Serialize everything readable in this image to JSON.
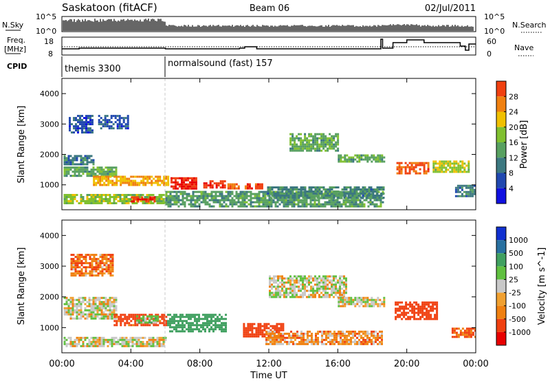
{
  "header": {
    "station": "Saskatoon (fitACF)",
    "beam": "Beam 06",
    "date": "02/Jul/2011"
  },
  "noise_panel": {
    "left_label": "N.Sky",
    "right_label": "N.Search",
    "left_ticks": [
      "10^5",
      "10^0"
    ],
    "right_ticks": [
      "10^5",
      "10^0"
    ]
  },
  "freq_panel": {
    "left_label_1": "Freq.",
    "left_label_2": "[MHz]",
    "right_label": "Nave",
    "left_ticks": [
      "18",
      "8"
    ],
    "right_ticks": [
      "60",
      "0"
    ]
  },
  "cpid": {
    "label": "CPID",
    "programs": [
      {
        "name": "themis 3300",
        "start_hour": 0
      },
      {
        "name": "normalsound (fast) 157",
        "start_hour": 6
      }
    ]
  },
  "x_axis": {
    "label": "Time UT",
    "ticks": [
      "00:00",
      "04:00",
      "08:00",
      "12:00",
      "16:00",
      "20:00",
      "00:00"
    ]
  },
  "colors": {
    "power_scale": [
      "#1010e0",
      "#2048b0",
      "#3c7880",
      "#58a060",
      "#80c030",
      "#f0c000",
      "#f08010",
      "#f04010",
      "#e80000"
    ],
    "velocity_scale": [
      "#e80000",
      "#f04010",
      "#f08010",
      "#f0a030",
      "#c8c8c8",
      "#60c040",
      "#40a060",
      "#2870a0",
      "#1030d0"
    ]
  },
  "chart_data": [
    {
      "type": "heatmap",
      "name": "power",
      "ylabel": "Slant Range [km]",
      "xlabel": "Time UT",
      "xlim_hours": [
        0,
        24
      ],
      "ylim": [
        180,
        4500
      ],
      "yticks": [
        "1000",
        "2000",
        "3000",
        "4000"
      ],
      "colorbar": {
        "label": "Power [dB]",
        "ticks": [
          "4",
          "8",
          "12",
          "16",
          "20",
          "24",
          "28"
        ],
        "range": [
          0,
          32
        ]
      },
      "bands": [
        {
          "t0": 0.1,
          "t1": 6.0,
          "r0": 380,
          "r1": 700,
          "value": 16
        },
        {
          "t0": 0.1,
          "t1": 3.2,
          "r0": 1300,
          "r1": 1600,
          "value": 13
        },
        {
          "t0": 0.1,
          "t1": 1.8,
          "r0": 1650,
          "r1": 1980,
          "value": 9
        },
        {
          "t0": 0.4,
          "t1": 1.8,
          "r0": 2750,
          "r1": 3300,
          "value": 6
        },
        {
          "t0": 2.1,
          "t1": 3.8,
          "r0": 2850,
          "r1": 3300,
          "value": 6
        },
        {
          "t0": 1.8,
          "t1": 6.2,
          "r0": 1000,
          "r1": 1300,
          "value": 21
        },
        {
          "t0": 4.0,
          "t1": 5.4,
          "r0": 450,
          "r1": 620,
          "value": 28
        },
        {
          "t0": 6.3,
          "t1": 7.8,
          "r0": 850,
          "r1": 1250,
          "value": 29
        },
        {
          "t0": 8.2,
          "t1": 9.5,
          "r0": 900,
          "r1": 1150,
          "value": 28
        },
        {
          "t0": 9.6,
          "t1": 10.3,
          "r0": 850,
          "r1": 1050,
          "value": 24
        },
        {
          "t0": 10.6,
          "t1": 11.6,
          "r0": 850,
          "r1": 1050,
          "value": 27
        },
        {
          "t0": 6.0,
          "t1": 18.6,
          "r0": 300,
          "r1": 800,
          "value": 12
        },
        {
          "t0": 11.9,
          "t1": 18.6,
          "r0": 600,
          "r1": 950,
          "value": 10
        },
        {
          "t0": 13.2,
          "t1": 16.0,
          "r0": 2100,
          "r1": 2700,
          "value": 13
        },
        {
          "t0": 16.0,
          "t1": 18.7,
          "r0": 1750,
          "r1": 2000,
          "value": 13
        },
        {
          "t0": 19.4,
          "t1": 21.3,
          "r0": 1350,
          "r1": 1750,
          "value": 26
        },
        {
          "t0": 21.5,
          "t1": 23.6,
          "r0": 1400,
          "r1": 1800,
          "value": 17
        },
        {
          "t0": 22.8,
          "t1": 24.0,
          "r0": 650,
          "r1": 1000,
          "value": 9
        }
      ]
    },
    {
      "type": "heatmap",
      "name": "velocity",
      "ylabel": "Slant Range [km]",
      "xlabel": "Time UT",
      "xlim_hours": [
        0,
        24
      ],
      "ylim": [
        180,
        4500
      ],
      "yticks": [
        "1000",
        "2000",
        "3000",
        "4000"
      ],
      "colorbar": {
        "label": "Velocity [m s^-1]",
        "ticks": [
          "1000",
          "500",
          "100",
          "25",
          "-25",
          "-100",
          "-500",
          "-1000"
        ]
      },
      "bands": [
        {
          "t0": 0.1,
          "t1": 6.0,
          "r0": 400,
          "r1": 700,
          "value": 0
        },
        {
          "t0": 0.1,
          "t1": 3.2,
          "r0": 1300,
          "r1": 2000,
          "value": 0
        },
        {
          "t0": 0.5,
          "t1": 3.0,
          "r0": 2700,
          "r1": 3400,
          "value": -80
        },
        {
          "t0": 3.0,
          "t1": 6.0,
          "r0": 1050,
          "r1": 1450,
          "value": -150
        },
        {
          "t0": 4.3,
          "t1": 5.6,
          "r0": 1150,
          "r1": 1400,
          "value": 60
        },
        {
          "t0": 6.1,
          "t1": 9.5,
          "r0": 900,
          "r1": 1450,
          "value": 200
        },
        {
          "t0": 10.5,
          "t1": 12.8,
          "r0": 700,
          "r1": 1150,
          "value": -250
        },
        {
          "t0": 11.8,
          "t1": 18.6,
          "r0": 450,
          "r1": 900,
          "value": -60
        },
        {
          "t0": 12.0,
          "t1": 16.5,
          "r0": 2000,
          "r1": 2700,
          "value": 0
        },
        {
          "t0": 16.0,
          "t1": 18.7,
          "r0": 1700,
          "r1": 2000,
          "value": 0
        },
        {
          "t0": 19.3,
          "t1": 21.8,
          "r0": 1250,
          "r1": 1850,
          "value": -300
        },
        {
          "t0": 22.6,
          "t1": 24.0,
          "r0": 700,
          "r1": 1000,
          "value": -120
        }
      ]
    }
  ]
}
